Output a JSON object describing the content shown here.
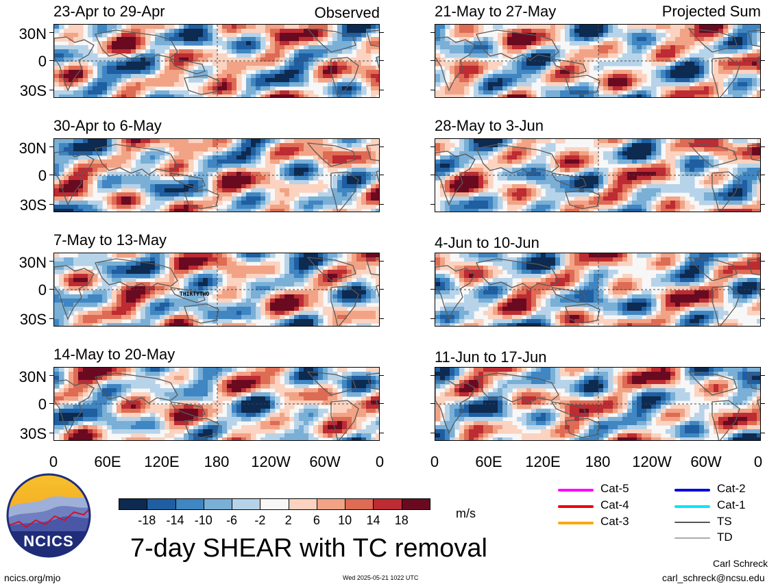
{
  "left_header": "Observed",
  "right_header": "Projected Sum",
  "panels_left": [
    {
      "title": "23-Apr to 29-Apr"
    },
    {
      "title": "30-Apr to 6-May"
    },
    {
      "title": "7-May to 13-May"
    },
    {
      "title": "14-May to 20-May"
    }
  ],
  "panels_right": [
    {
      "title": "21-May to 27-May"
    },
    {
      "title": "28-May to 3-Jun"
    },
    {
      "title": "4-Jun to 10-Jun"
    },
    {
      "title": "11-Jun to 17-Jun"
    }
  ],
  "lat_labels": [
    "30N",
    "0",
    "30S"
  ],
  "lon_labels": [
    "0",
    "60E",
    "120E",
    "180",
    "120W",
    "60W",
    "0"
  ],
  "storm_label": "THIRTYTWO",
  "colorbar": {
    "colors": [
      "#0d2a50",
      "#1f5ea0",
      "#3f86c2",
      "#7aafd6",
      "#b6d3e9",
      "#f7f7f7",
      "#fbd3c0",
      "#f2a386",
      "#de6b54",
      "#bd2b33",
      "#6a0a20"
    ],
    "labels": [
      "-18",
      "-14",
      "-10",
      "-6",
      "-2",
      "2",
      "6",
      "10",
      "14",
      "18"
    ],
    "units": "m/s"
  },
  "legend": [
    {
      "label": "Cat-5",
      "color": "#ff00ff"
    },
    {
      "label": "Cat-4",
      "color": "#ee0000"
    },
    {
      "label": "Cat-3",
      "color": "#ffa500"
    },
    {
      "label": "Cat-2",
      "color": "#0000dd"
    },
    {
      "label": "Cat-1",
      "color": "#00e5ff"
    },
    {
      "label": "TS",
      "color": "#555555"
    },
    {
      "label": "TD",
      "color": "#aaaaaa"
    }
  ],
  "logo_text": "NCICS",
  "main_title": "7-day SHEAR with TC removal",
  "url": "ncics.org/mjo",
  "timestamp": "Wed 2025-05-21 1022 UTC",
  "author": "Carl Schreck",
  "email": "carl_schreck@ncsu.edu"
}
